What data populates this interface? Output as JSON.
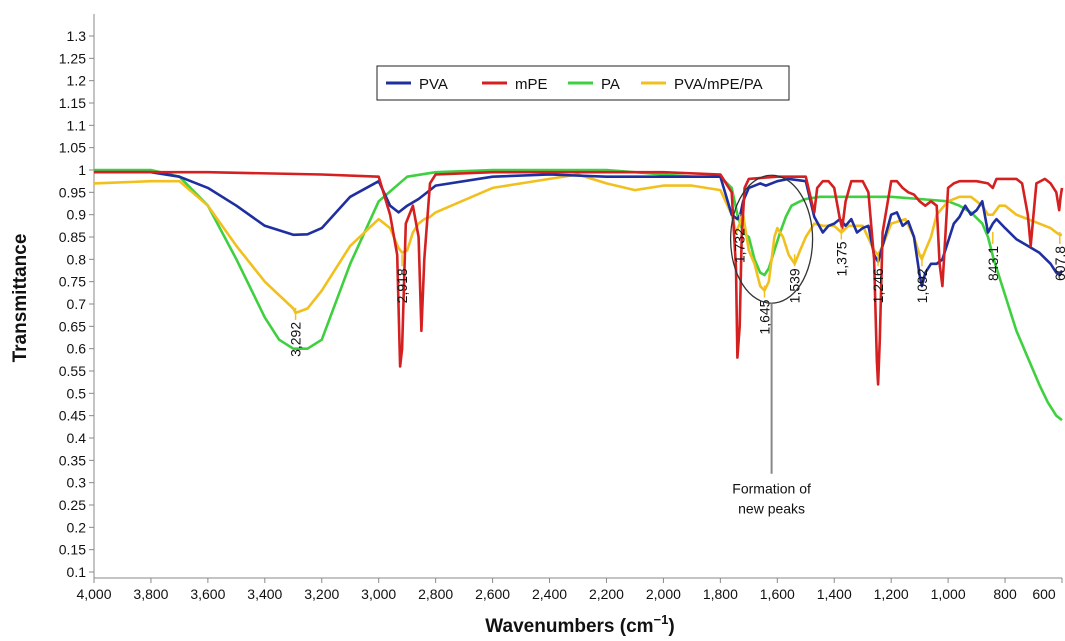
{
  "chart_data": {
    "type": "line",
    "title": "",
    "xlabel": "Wavenumbers (cm",
    "xlabel_superscript": "−1",
    "xlabel_close": ")",
    "ylabel": "Transmittance",
    "xlim": [
      4000,
      600
    ],
    "x_reversed": true,
    "ylim": [
      0.1,
      1.3
    ],
    "grid": false,
    "legend_position": "top-center",
    "x_ticks": [
      4000,
      3800,
      3600,
      3400,
      3200,
      3000,
      2800,
      2600,
      2400,
      2200,
      2000,
      1800,
      1600,
      1400,
      1200,
      1000,
      800,
      600
    ],
    "x_tick_labels": [
      "4,000",
      "3,800",
      "3,600",
      "3,400",
      "3,200",
      "3,000",
      "2,800",
      "2,600",
      "2,400",
      "2,200",
      "2,000",
      "1,800",
      "1,600",
      "1,400",
      "1,200",
      "1,000",
      "800",
      "600"
    ],
    "y_ticks": [
      0.1,
      0.15,
      0.2,
      0.25,
      0.3,
      0.35,
      0.4,
      0.45,
      0.5,
      0.55,
      0.6,
      0.65,
      0.7,
      0.75,
      0.8,
      0.85,
      0.9,
      0.95,
      1,
      1.05,
      1.1,
      1.15,
      1.2,
      1.25,
      1.3
    ],
    "y_tick_labels": [
      "0.1",
      "0.15",
      "0.2",
      "0.25",
      "0.3",
      "0.35",
      "0.4",
      "0.45",
      "0.5",
      "0.55",
      "0.6",
      "0.65",
      "0.7",
      "0.75",
      "0.8",
      "0.85",
      "0.9",
      "0.95",
      "1",
      "1.05",
      "1.1",
      "1.15",
      "1.2",
      "1.25",
      "1.3"
    ],
    "series": [
      {
        "name": "PVA",
        "color": "#1f2fa0",
        "x": [
          4000,
          3800,
          3700,
          3600,
          3500,
          3400,
          3300,
          3250,
          3200,
          3100,
          3000,
          2960,
          2930,
          2900,
          2860,
          2820,
          2800,
          2600,
          2400,
          2200,
          2000,
          1900,
          1800,
          1760,
          1740,
          1730,
          1720,
          1700,
          1660,
          1640,
          1600,
          1560,
          1500,
          1470,
          1440,
          1420,
          1400,
          1380,
          1360,
          1340,
          1320,
          1300,
          1280,
          1260,
          1246,
          1230,
          1200,
          1180,
          1160,
          1140,
          1120,
          1100,
          1092,
          1080,
          1060,
          1040,
          1020,
          1000,
          980,
          960,
          940,
          920,
          900,
          880,
          860,
          843,
          830,
          800,
          760,
          720,
          680,
          640,
          620,
          607.8,
          600
        ],
        "y": [
          0.995,
          0.995,
          0.985,
          0.96,
          0.92,
          0.875,
          0.855,
          0.856,
          0.87,
          0.94,
          0.975,
          0.92,
          0.905,
          0.92,
          0.935,
          0.955,
          0.965,
          0.985,
          0.99,
          0.985,
          0.985,
          0.985,
          0.985,
          0.9,
          0.89,
          0.9,
          0.93,
          0.96,
          0.97,
          0.965,
          0.975,
          0.98,
          0.975,
          0.895,
          0.86,
          0.875,
          0.88,
          0.89,
          0.875,
          0.89,
          0.86,
          0.87,
          0.875,
          0.81,
          0.795,
          0.83,
          0.9,
          0.905,
          0.875,
          0.885,
          0.85,
          0.765,
          0.74,
          0.77,
          0.79,
          0.79,
          0.8,
          0.84,
          0.88,
          0.895,
          0.92,
          0.9,
          0.91,
          0.93,
          0.86,
          0.88,
          0.89,
          0.87,
          0.845,
          0.83,
          0.815,
          0.79,
          0.77,
          0.765,
          0.775
        ]
      },
      {
        "name": "mPE",
        "color": "#d42020",
        "x": [
          4000,
          3600,
          3200,
          3000,
          2960,
          2935,
          2925,
          2918,
          2905,
          2880,
          2860,
          2850,
          2840,
          2820,
          2800,
          2600,
          2400,
          2200,
          2000,
          1800,
          1760,
          1745,
          1740,
          1732,
          1725,
          1715,
          1700,
          1600,
          1500,
          1480,
          1470,
          1460,
          1440,
          1420,
          1400,
          1380,
          1372,
          1360,
          1340,
          1300,
          1280,
          1260,
          1250,
          1246,
          1240,
          1230,
          1200,
          1180,
          1160,
          1140,
          1120,
          1100,
          1080,
          1060,
          1040,
          1030,
          1020,
          1010,
          1000,
          980,
          960,
          900,
          860,
          843,
          830,
          800,
          760,
          740,
          720,
          710,
          700,
          690,
          660,
          640,
          620,
          610,
          605,
          600
        ],
        "y": [
          0.995,
          0.995,
          0.99,
          0.985,
          0.9,
          0.81,
          0.56,
          0.6,
          0.88,
          0.92,
          0.85,
          0.64,
          0.8,
          0.97,
          0.99,
          0.995,
          0.995,
          0.995,
          0.995,
          0.99,
          0.95,
          0.78,
          0.58,
          0.65,
          0.85,
          0.96,
          0.98,
          0.985,
          0.985,
          0.93,
          0.905,
          0.96,
          0.975,
          0.975,
          0.96,
          0.89,
          0.87,
          0.93,
          0.975,
          0.975,
          0.95,
          0.8,
          0.57,
          0.52,
          0.62,
          0.86,
          0.975,
          0.975,
          0.96,
          0.95,
          0.945,
          0.93,
          0.92,
          0.93,
          0.92,
          0.79,
          0.74,
          0.85,
          0.96,
          0.97,
          0.975,
          0.975,
          0.97,
          0.96,
          0.98,
          0.98,
          0.98,
          0.97,
          0.9,
          0.83,
          0.9,
          0.97,
          0.98,
          0.97,
          0.95,
          0.91,
          0.94,
          0.96
        ]
      },
      {
        "name": "PA",
        "color": "#3fd040",
        "x": [
          4000,
          3800,
          3700,
          3600,
          3500,
          3400,
          3350,
          3300,
          3292,
          3250,
          3200,
          3100,
          3000,
          2900,
          2800,
          2600,
          2400,
          2200,
          2000,
          1900,
          1800,
          1760,
          1740,
          1720,
          1700,
          1680,
          1660,
          1645,
          1630,
          1610,
          1590,
          1570,
          1550,
          1520,
          1500,
          1450,
          1400,
          1300,
          1200,
          1100,
          1000,
          960,
          920,
          880,
          860,
          840,
          800,
          760,
          720,
          680,
          650,
          620,
          600
        ],
        "y": [
          1.0,
          1.0,
          0.985,
          0.92,
          0.8,
          0.67,
          0.62,
          0.6,
          0.6,
          0.6,
          0.62,
          0.79,
          0.93,
          0.985,
          0.995,
          1.0,
          1.0,
          1.0,
          0.99,
          0.985,
          0.985,
          0.96,
          0.9,
          0.86,
          0.85,
          0.8,
          0.77,
          0.765,
          0.78,
          0.82,
          0.86,
          0.895,
          0.92,
          0.93,
          0.935,
          0.94,
          0.94,
          0.94,
          0.94,
          0.935,
          0.93,
          0.92,
          0.905,
          0.88,
          0.85,
          0.8,
          0.72,
          0.64,
          0.58,
          0.52,
          0.48,
          0.45,
          0.44
        ]
      },
      {
        "name": "PVA/mPE/PA",
        "color": "#f2c01e",
        "x": [
          4000,
          3800,
          3700,
          3600,
          3500,
          3400,
          3300,
          3292,
          3250,
          3200,
          3100,
          3000,
          2960,
          2930,
          2918,
          2900,
          2880,
          2860,
          2840,
          2820,
          2800,
          2600,
          2400,
          2300,
          2200,
          2100,
          2000,
          1900,
          1800,
          1760,
          1745,
          1732,
          1720,
          1700,
          1680,
          1660,
          1645,
          1630,
          1610,
          1600,
          1580,
          1560,
          1539,
          1520,
          1500,
          1470,
          1440,
          1400,
          1375,
          1350,
          1300,
          1260,
          1246,
          1230,
          1200,
          1150,
          1120,
          1100,
          1092,
          1080,
          1060,
          1040,
          1000,
          960,
          920,
          880,
          860,
          843,
          820,
          800,
          760,
          720,
          680,
          640,
          620,
          607.8,
          600
        ],
        "y": [
          0.97,
          0.975,
          0.975,
          0.92,
          0.83,
          0.75,
          0.69,
          0.68,
          0.69,
          0.73,
          0.83,
          0.89,
          0.87,
          0.825,
          0.815,
          0.82,
          0.86,
          0.88,
          0.89,
          0.895,
          0.905,
          0.96,
          0.98,
          0.99,
          0.97,
          0.955,
          0.965,
          0.965,
          0.955,
          0.9,
          0.86,
          0.88,
          0.9,
          0.82,
          0.79,
          0.74,
          0.73,
          0.75,
          0.85,
          0.87,
          0.85,
          0.81,
          0.79,
          0.82,
          0.85,
          0.88,
          0.875,
          0.875,
          0.86,
          0.875,
          0.875,
          0.82,
          0.81,
          0.83,
          0.88,
          0.89,
          0.85,
          0.81,
          0.8,
          0.82,
          0.85,
          0.9,
          0.93,
          0.94,
          0.94,
          0.92,
          0.9,
          0.9,
          0.92,
          0.92,
          0.9,
          0.89,
          0.88,
          0.87,
          0.86,
          0.855,
          0.855
        ]
      }
    ],
    "peak_labels": [
      {
        "text": "3,292",
        "x": 3292,
        "y": 0.66
      },
      {
        "text": "2,918",
        "x": 2918,
        "y": 0.78
      },
      {
        "text": "1,732",
        "x": 1732,
        "y": 0.87
      },
      {
        "text": "1,645",
        "x": 1645,
        "y": 0.71
      },
      {
        "text": "1,539",
        "x": 1539,
        "y": 0.78
      },
      {
        "text": "1,375",
        "x": 1375,
        "y": 0.84
      },
      {
        "text": "1,246",
        "x": 1246,
        "y": 0.78
      },
      {
        "text": "1,092",
        "x": 1092,
        "y": 0.78
      },
      {
        "text": "843.1",
        "x": 843.1,
        "y": 0.83
      },
      {
        "text": "607.8",
        "x": 607.8,
        "y": 0.83
      }
    ],
    "annotation": {
      "line1": "Formation of",
      "line2": "new peaks",
      "ellipse_center": [
        1620,
        0.845
      ],
      "pointer_end_y": 0.32
    }
  }
}
